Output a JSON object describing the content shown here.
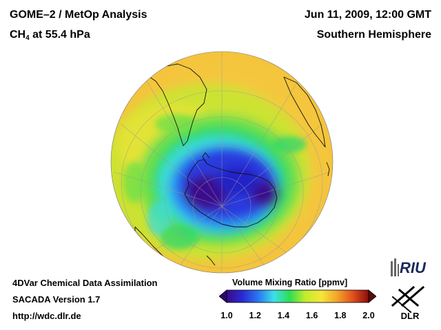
{
  "header": {
    "title_line1": "GOME–2 / MetOp Analysis",
    "species": "CH",
    "species_sub": "4",
    "level": "at 55.4 hPa",
    "datetime": "Jun 11, 2009, 12:00 GMT",
    "region": "Southern Hemisphere"
  },
  "footer": {
    "line1": "4DVar Chemical Data Assimilation",
    "line2": "SACADA Version 1.7",
    "line3": "http://wdc.dlr.de"
  },
  "colorbar": {
    "title": "Volume Mixing Ratio [ppmv]",
    "min": 1.0,
    "max": 2.0,
    "ticks": [
      "1.0",
      "1.2",
      "1.4",
      "1.6",
      "1.8",
      "2.0"
    ],
    "colors": [
      "#3a0a8c",
      "#2a2ad2",
      "#2a78f2",
      "#3ce0e8",
      "#2ede52",
      "#c4ec2c",
      "#f4e63a",
      "#f4a42a",
      "#e0501e",
      "#8a0c0c"
    ]
  },
  "logos": {
    "riu": "RIU",
    "dlr": "DLR"
  },
  "map": {
    "projection": "orthographic, south pole view",
    "background_value_ppmv": 1.65,
    "minimum_value_ppmv": 1.05
  }
}
